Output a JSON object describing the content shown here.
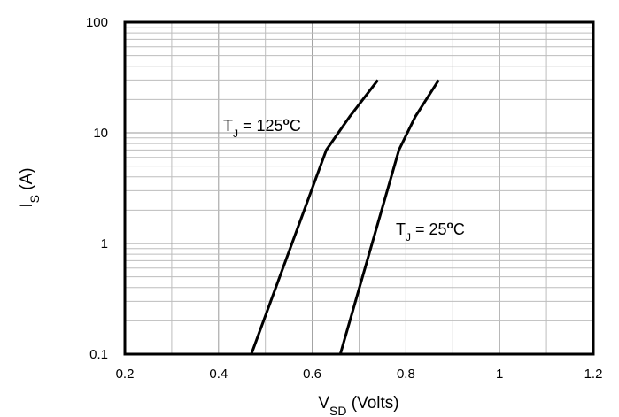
{
  "chart_data": {
    "type": "line",
    "xscale": "linear",
    "yscale": "log",
    "xlim": [
      0.2,
      1.2
    ],
    "ylim": [
      0.1,
      100
    ],
    "xticks": [
      "0.2",
      "0.4",
      "0.6",
      "0.8",
      "1",
      "1.2"
    ],
    "yticks": [
      "0.1",
      "1",
      "10",
      "100"
    ],
    "xlabel": {
      "main": "V",
      "sub": "SD",
      "rest": " (Volts)"
    },
    "ylabel": {
      "main": "I",
      "sub": "S",
      "rest": " (A)"
    },
    "grid": true,
    "series": [
      {
        "label": {
          "main": "T",
          "sub": "J",
          "rest": " = 125",
          "deg": "o",
          "unit": "C"
        },
        "x": [
          0.47,
          0.63,
          0.68,
          0.74
        ],
        "y": [
          0.1,
          7,
          14,
          30
        ]
      },
      {
        "label": {
          "main": "T",
          "sub": "J",
          "rest": " = 25",
          "deg": "o",
          "unit": "C"
        },
        "x": [
          0.66,
          0.785,
          0.82,
          0.87
        ],
        "y": [
          0.1,
          7,
          14,
          30
        ]
      }
    ]
  }
}
